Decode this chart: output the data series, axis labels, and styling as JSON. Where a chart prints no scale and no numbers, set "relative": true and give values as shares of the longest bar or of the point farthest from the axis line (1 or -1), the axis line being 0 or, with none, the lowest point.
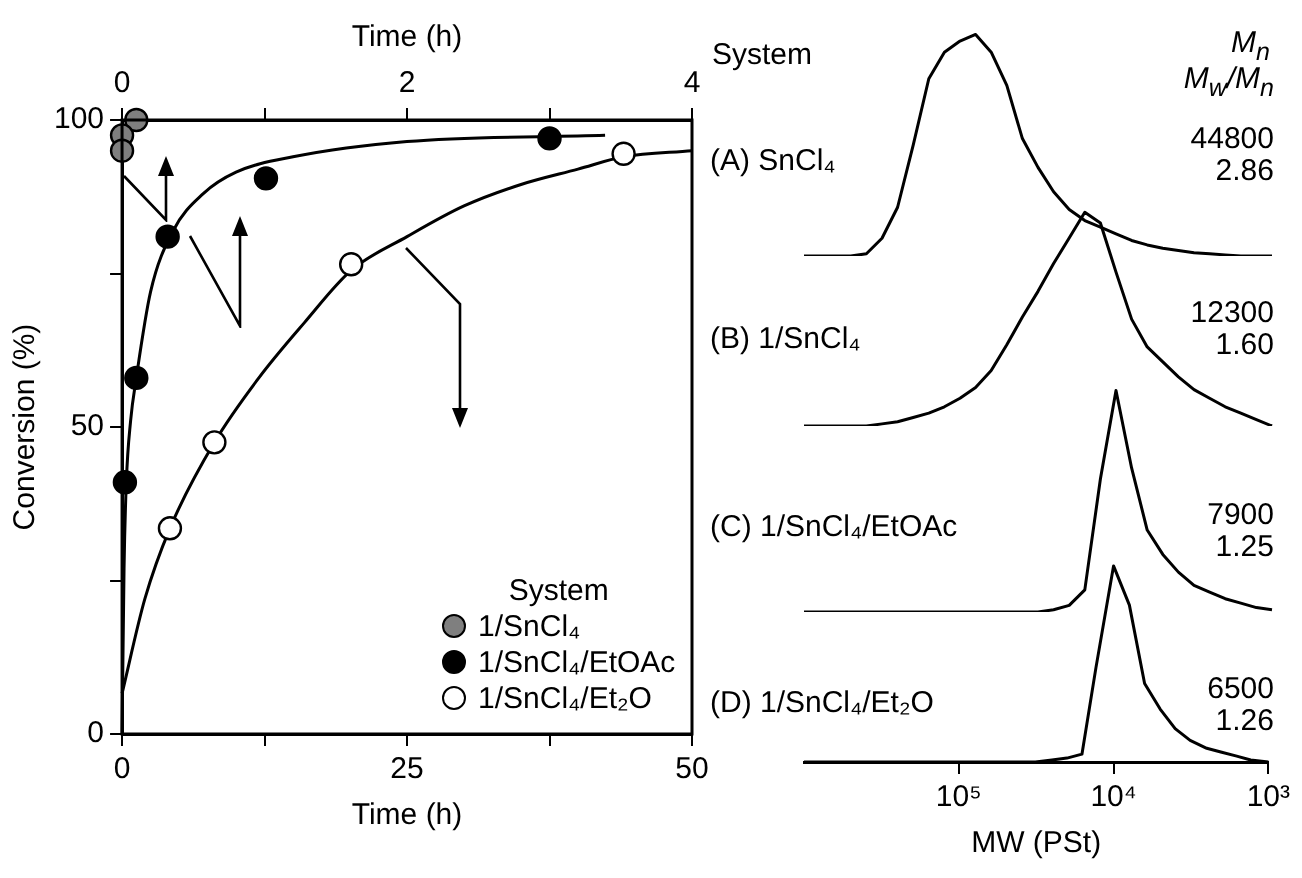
{
  "chart_data": [
    {
      "type": "scatter",
      "xlabel": "Time (h)",
      "x2label": "Time (h)",
      "ylabel": "Conversion (%)",
      "legend_title": "System",
      "legend": "bottom right",
      "grid": false,
      "marker": "circle",
      "xlim": [
        0,
        50
      ],
      "xticks": [
        0,
        {
          "value": 12.5,
          "label": null
        },
        25,
        {
          "value": 37.5,
          "label": null
        },
        50
      ],
      "x2lim": [
        0,
        4
      ],
      "x2ticks": [
        0,
        {
          "value": 1,
          "label": null
        },
        2,
        {
          "value": 3,
          "label": null
        },
        4
      ],
      "ylim": [
        0,
        100
      ],
      "yticks": [
        0,
        {
          "value": 25,
          "label": null
        },
        50,
        {
          "value": 75,
          "label": null
        },
        100
      ],
      "series": [
        {
          "name": "1/SnCl₄",
          "type": "scatter",
          "axis": "x2",
          "color": "#7f7f7f",
          "x": [
            0.1,
            0,
            0
          ],
          "values": [
            100,
            97.5,
            95
          ]
        },
        {
          "name": "1/SnCl₄/EtOAc",
          "type": "scatter",
          "axis": "x2",
          "color": "#000000",
          "x": [
            0.02,
            0.1,
            0.32,
            1.01,
            3.0
          ],
          "values": [
            41,
            58,
            81,
            90.5,
            97
          ]
        },
        {
          "name": "1/SnCl₄/Et₂O",
          "type": "scatter",
          "color": "#ffffff",
          "x": [
            4.2,
            8.1,
            20.1,
            44
          ],
          "values": [
            33.5,
            47.5,
            76.5,
            94.5
          ]
        },
        {
          "type": "line",
          "axis": "x2",
          "color": "#000000",
          "marker": "none",
          "x": [
            0,
            0.014,
            0.03,
            0.06,
            0.1,
            0.2,
            0.36,
            0.57,
            0.8,
            1.2,
            2,
            3.39
          ],
          "values": [
            0,
            27,
            41,
            51,
            58,
            72,
            82,
            88,
            91.5,
            94,
            96.5,
            97.5
          ]
        },
        {
          "type": "line",
          "color": "#000000",
          "marker": "none",
          "x": [
            0,
            2,
            4.2,
            8.1,
            12,
            16,
            20.1,
            25,
            30,
            35,
            40,
            44,
            50
          ],
          "values": [
            6.6,
            22,
            33.5,
            47.5,
            58,
            67,
            75.5,
            81,
            86,
            89.5,
            92,
            94,
            95
          ]
        }
      ]
    },
    {
      "type": "line",
      "relative": true,
      "tick_labels": false,
      "categories": [
        null,
        null,
        null,
        null,
        null,
        null,
        null,
        null,
        null,
        null,
        null,
        null,
        null,
        null,
        null,
        null,
        null,
        null,
        null,
        null,
        null,
        null,
        null,
        null,
        null,
        null,
        null,
        null,
        null,
        null,
        null
      ],
      "annotations": [
        "System",
        "M$_{n}$",
        "M$_{w}$/M$_{n}$",
        "(A) SnCl₄",
        "44800",
        "2.86"
      ],
      "series": [
        {
          "color": "#000000",
          "values": [
            0,
            0,
            0,
            0,
            0.01,
            0.08,
            0.22,
            0.5,
            0.8,
            0.92,
            0.97,
            1,
            0.92,
            0.77,
            0.53,
            0.4,
            0.29,
            0.21,
            0.16,
            0.13,
            0.1,
            0.07,
            0.05,
            0.035,
            0.025,
            0.015,
            0.01,
            0.005,
            0,
            0,
            0
          ]
        }
      ]
    },
    {
      "type": "line",
      "relative": true,
      "tick_labels": false,
      "categories": [
        null,
        null,
        null,
        null,
        null,
        null,
        null,
        null,
        null,
        null,
        null,
        null,
        null,
        null,
        null,
        null,
        null,
        null,
        null,
        null,
        null,
        null,
        null,
        null,
        null,
        null,
        null,
        null,
        null,
        null,
        null
      ],
      "annotations": [
        "(B) 1/SnCl₄",
        "12300",
        "1.60"
      ],
      "series": [
        {
          "color": "#000000",
          "values": [
            0,
            0,
            0,
            0,
            0,
            0.01,
            0.02,
            0.04,
            0.06,
            0.09,
            0.13,
            0.18,
            0.26,
            0.38,
            0.51,
            0.63,
            0.76,
            0.88,
            1,
            0.95,
            0.72,
            0.5,
            0.37,
            0.3,
            0.23,
            0.17,
            0.13,
            0.09,
            0.06,
            0.03,
            0
          ]
        }
      ]
    },
    {
      "type": "line",
      "relative": true,
      "tick_labels": false,
      "categories": [
        null,
        null,
        null,
        null,
        null,
        null,
        null,
        null,
        null,
        null,
        null,
        null,
        null,
        null,
        null,
        null,
        null,
        null,
        null,
        null,
        null,
        null,
        null,
        null,
        null,
        null,
        null,
        null,
        null,
        null,
        null
      ],
      "annotations": [
        "(C) 1/SnCl₄/EtOAc",
        "7900",
        "1.25"
      ],
      "series": [
        {
          "color": "#000000",
          "values": [
            0,
            0,
            0,
            0,
            0,
            0,
            0,
            0,
            0,
            0,
            0,
            0,
            0,
            0,
            0,
            0,
            0.01,
            0.03,
            0.1,
            0.6,
            1,
            0.65,
            0.37,
            0.26,
            0.18,
            0.12,
            0.09,
            0.06,
            0.04,
            0.02,
            0.01
          ]
        }
      ]
    },
    {
      "type": "line",
      "relative": true,
      "log": "x",
      "xlim": [
        1000000,
        1000
      ],
      "tick_labels": "x",
      "xlabel": "MW (PSt)",
      "xticks": [
        {
          "value": 100000,
          "label": "10⁵"
        },
        {
          "value": 10000,
          "label": "10⁴"
        },
        {
          "value": 1000,
          "label": "10³"
        }
      ],
      "annotations": [
        "(D) 1/SnCl₄/Et₂O",
        "6500",
        "1.26"
      ],
      "series": [
        {
          "color": "#000000",
          "x": [
            1000000,
            790000,
            630000,
            500000,
            400000,
            320000,
            250000,
            200000,
            160000,
            130000,
            100000,
            79000,
            63000,
            50000,
            40000,
            32000,
            25000,
            20000,
            16000,
            13000,
            10000,
            7900,
            6300,
            5000,
            4000,
            3200,
            2500,
            2000,
            1600,
            1300,
            1000
          ],
          "values": [
            0,
            0,
            0,
            0,
            0,
            0,
            0,
            0,
            0,
            0,
            0,
            0,
            0,
            0,
            0,
            0,
            0.01,
            0.02,
            0.04,
            0.48,
            1,
            0.8,
            0.4,
            0.27,
            0.17,
            0.11,
            0.07,
            0.05,
            0.03,
            0.01,
            0
          ]
        }
      ]
    }
  ]
}
